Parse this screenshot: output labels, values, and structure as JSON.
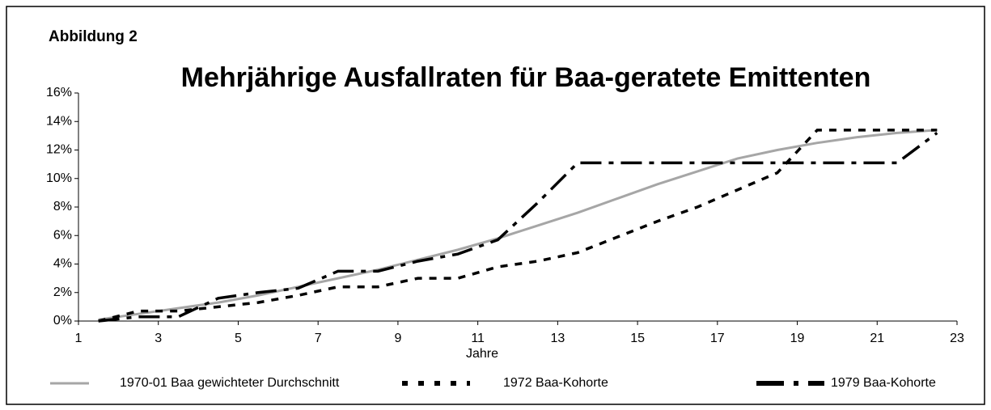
{
  "chart_data": {
    "type": "line",
    "label": "Abbildung 2",
    "title": "Mehrjährige Ausfallraten für Baa-geratete Emittenten",
    "xlabel": "Jahre",
    "x": [
      1.5,
      2.5,
      3.5,
      4.5,
      5.5,
      6.5,
      7.5,
      8.5,
      9.5,
      10.5,
      11.5,
      12.5,
      13.5,
      14.5,
      15.5,
      16.5,
      17.5,
      18.5,
      19.5,
      20.5,
      21.5,
      22.5
    ],
    "series": [
      {
        "name": "1970-01 Baa gewichteter Durchschnitt",
        "color": "#a6a6a6",
        "dash": "solid",
        "values": [
          0.1,
          0.5,
          0.9,
          1.3,
          1.8,
          2.4,
          3.0,
          3.6,
          4.3,
          5.0,
          5.8,
          6.7,
          7.6,
          8.6,
          9.6,
          10.5,
          11.4,
          12.0,
          12.5,
          12.9,
          13.2,
          13.4
        ]
      },
      {
        "name": "1972 Baa-Kohorte",
        "color": "#000000",
        "dash": "dashed",
        "values": [
          0,
          0.7,
          0.7,
          1.0,
          1.3,
          1.8,
          2.4,
          2.4,
          3.0,
          3.0,
          3.8,
          4.2,
          4.8,
          5.9,
          7.0,
          8.0,
          9.2,
          10.4,
          13.4,
          13.4,
          13.4,
          13.4
        ]
      },
      {
        "name": "1979 Baa-Kohorte",
        "color": "#000000",
        "dash": "dashdot",
        "values": [
          0,
          0.3,
          0.3,
          1.6,
          2.0,
          2.3,
          3.5,
          3.5,
          4.2,
          4.7,
          5.7,
          8.3,
          11.1,
          11.1,
          11.1,
          11.1,
          11.1,
          11.1,
          11.1,
          11.1,
          11.1,
          13.2
        ]
      }
    ],
    "xlim": [
      1,
      23
    ],
    "xticks": [
      1,
      3,
      5,
      7,
      9,
      11,
      13,
      15,
      17,
      19,
      21,
      23
    ],
    "ylim": [
      0,
      16
    ],
    "yticks": [
      {
        "value": 0,
        "label": "0%"
      },
      {
        "value": 2,
        "label": "2%"
      },
      {
        "value": 4,
        "label": "4%"
      },
      {
        "value": 6,
        "label": "6%"
      },
      {
        "value": 8,
        "label": "8%"
      },
      {
        "value": 10,
        "label": "10%"
      },
      {
        "value": 12,
        "label": "12%"
      },
      {
        "value": 14,
        "label": "14%"
      },
      {
        "value": 16,
        "label": "16%"
      }
    ],
    "grid": false,
    "legend": "bottom"
  }
}
